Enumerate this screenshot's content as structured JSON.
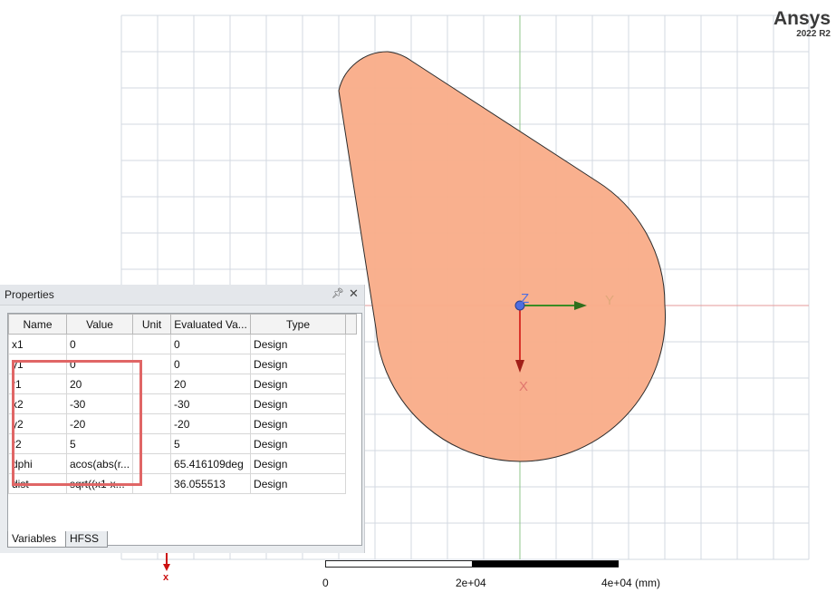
{
  "brand": {
    "name": "Ansys",
    "version": "2022 R2"
  },
  "canvas": {
    "axis_labels": {
      "z": "Z",
      "y": "Y",
      "x": "X",
      "mini_x": "x"
    },
    "colors": {
      "shape_fill": "#f9ad8a",
      "grid": "#d3d8e2",
      "x_axis": "#d9342b",
      "y_axis": "#3a8c24",
      "z_axis": "#4f6ee0"
    },
    "scale_bar": {
      "labels": [
        "0",
        "2e+04",
        "4e+04 (mm)"
      ]
    }
  },
  "properties": {
    "title": "Properties",
    "pin_icon": "pin-icon",
    "close_icon": "close-icon",
    "columns": [
      "Name",
      "Value",
      "Unit",
      "Evaluated Va...",
      "Type"
    ],
    "rows": [
      {
        "name": "x1",
        "value": "0",
        "unit": "",
        "evaluated": "0",
        "type": "Design"
      },
      {
        "name": "y1",
        "value": "0",
        "unit": "",
        "evaluated": "0",
        "type": "Design"
      },
      {
        "name": "r1",
        "value": "20",
        "unit": "",
        "evaluated": "20",
        "type": "Design"
      },
      {
        "name": "x2",
        "value": "-30",
        "unit": "",
        "evaluated": "-30",
        "type": "Design"
      },
      {
        "name": "y2",
        "value": "-20",
        "unit": "",
        "evaluated": "-20",
        "type": "Design"
      },
      {
        "name": "r2",
        "value": "5",
        "unit": "",
        "evaluated": "5",
        "type": "Design"
      },
      {
        "name": "dphi",
        "value": "acos(abs(r...",
        "unit": "",
        "evaluated": "65.416109deg",
        "type": "Design"
      },
      {
        "name": "dist",
        "value": "sqrt((x1-x...",
        "unit": "",
        "evaluated": "36.055513",
        "type": "Design"
      }
    ],
    "tabs": [
      "Variables",
      "HFSS"
    ],
    "active_tab": "Variables"
  }
}
